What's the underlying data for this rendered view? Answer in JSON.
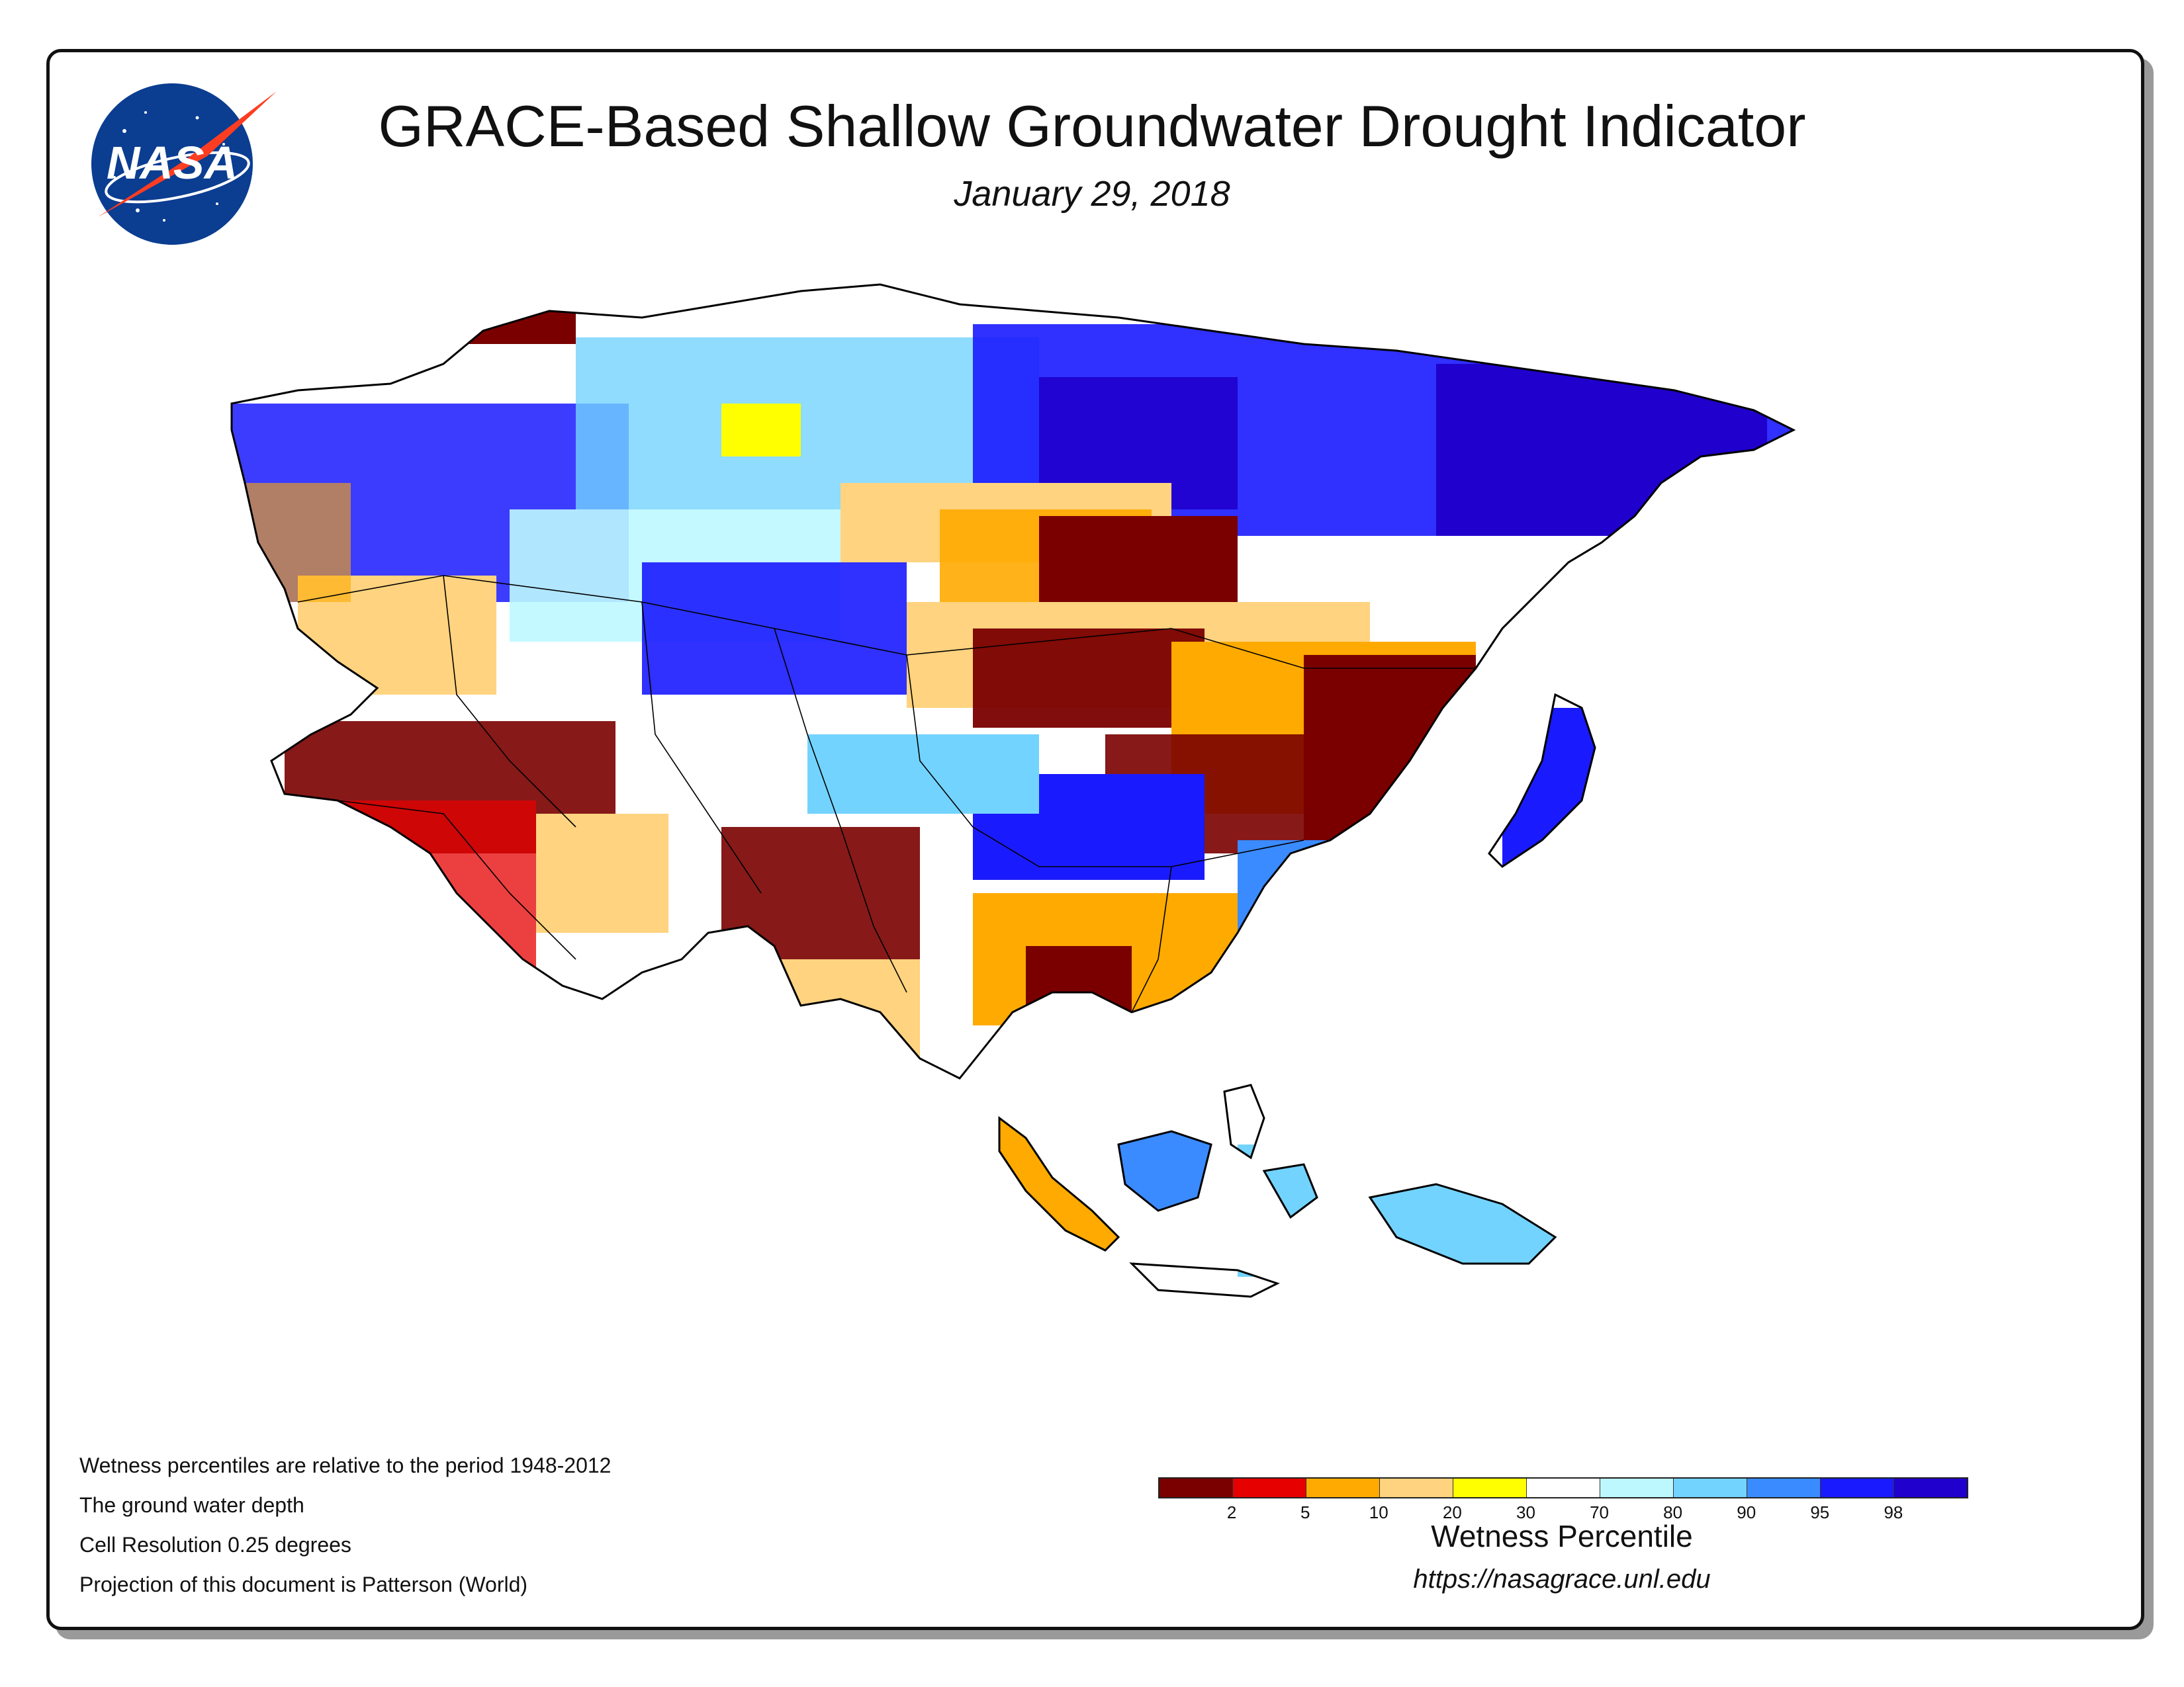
{
  "header": {
    "title": "GRACE-Based Shallow Groundwater Drought Indicator",
    "date": "January 29, 2018"
  },
  "logo": {
    "text": "NASA",
    "colors": {
      "disc": "#0b3d91",
      "chevron": "#fc3d21",
      "text": "#ffffff"
    }
  },
  "notes": [
    "Wetness percentiles are relative to the period 1948-2012",
    "The ground water depth",
    "Cell Resolution 0.25 degrees",
    "Projection of this document is Patterson (World)"
  ],
  "legend": {
    "title": "Wetness Percentile",
    "colors": [
      "#7a0000",
      "#e60000",
      "#ffaa00",
      "#ffd37f",
      "#ffff00",
      "#ffffff",
      "#bef8ff",
      "#73d3ff",
      "#3a8bff",
      "#1a1aff",
      "#2000cc"
    ],
    "ticks": [
      "2",
      "5",
      "10",
      "20",
      "30",
      "70",
      "80",
      "90",
      "95",
      "98"
    ]
  },
  "source": "https://nasagrace.unl.edu",
  "map_colors": {
    "very_dry": "#7a0000",
    "dry": "#e60000",
    "orange": "#ffaa00",
    "tan": "#ffd37f",
    "yellow": "#ffff00",
    "normal": "#ffffff",
    "pale_blue": "#bef8ff",
    "light_blue": "#73d3ff",
    "mid_blue": "#3a8bff",
    "blue": "#1a1aff",
    "dark_blue": "#2000cc"
  }
}
